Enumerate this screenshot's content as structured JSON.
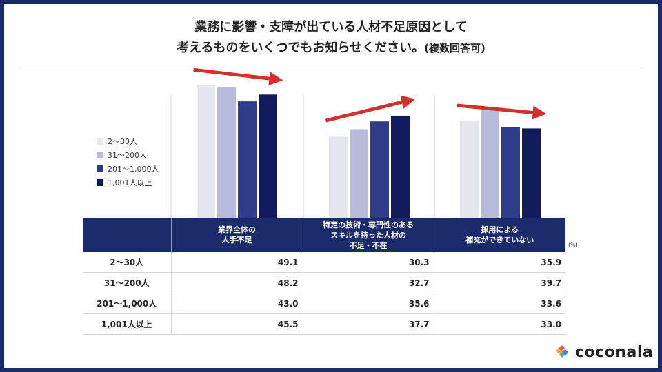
{
  "header": {
    "title_line1": "業務に影響・支障が出ている人材不足原因として",
    "title_line2": "考えるものをいくつでもお知らせください。",
    "title_note": "(複数回答可)"
  },
  "chart_data": {
    "type": "bar",
    "title": "業務に影響・支障が出ている人材不足原因として考えるものをいくつでもお知らせください。(複数回答可)",
    "categories": [
      "業界全体の\n人手不足",
      "特定の技術・専門性のある\nスキルを持った人材の\n不足・不在",
      "採用による\n補充ができていない"
    ],
    "series": [
      {
        "name": "2〜30人",
        "color": "#e4e6f0",
        "values": [
          49.1,
          30.3,
          35.9
        ]
      },
      {
        "name": "31〜200人",
        "color": "#b7bbd9",
        "values": [
          48.2,
          32.7,
          39.7
        ]
      },
      {
        "name": "201〜1,000人",
        "color": "#2f3c8c",
        "values": [
          43.0,
          35.6,
          33.6
        ]
      },
      {
        "name": "1,001人以上",
        "color": "#111a5c",
        "values": [
          45.5,
          37.7,
          33.0
        ]
      }
    ],
    "unit": "(%)",
    "ylim": [
      0,
      55
    ],
    "legend": "left",
    "grid": false,
    "trend_arrow_color": "#d32f2f"
  },
  "brand": {
    "name": "coconala"
  }
}
